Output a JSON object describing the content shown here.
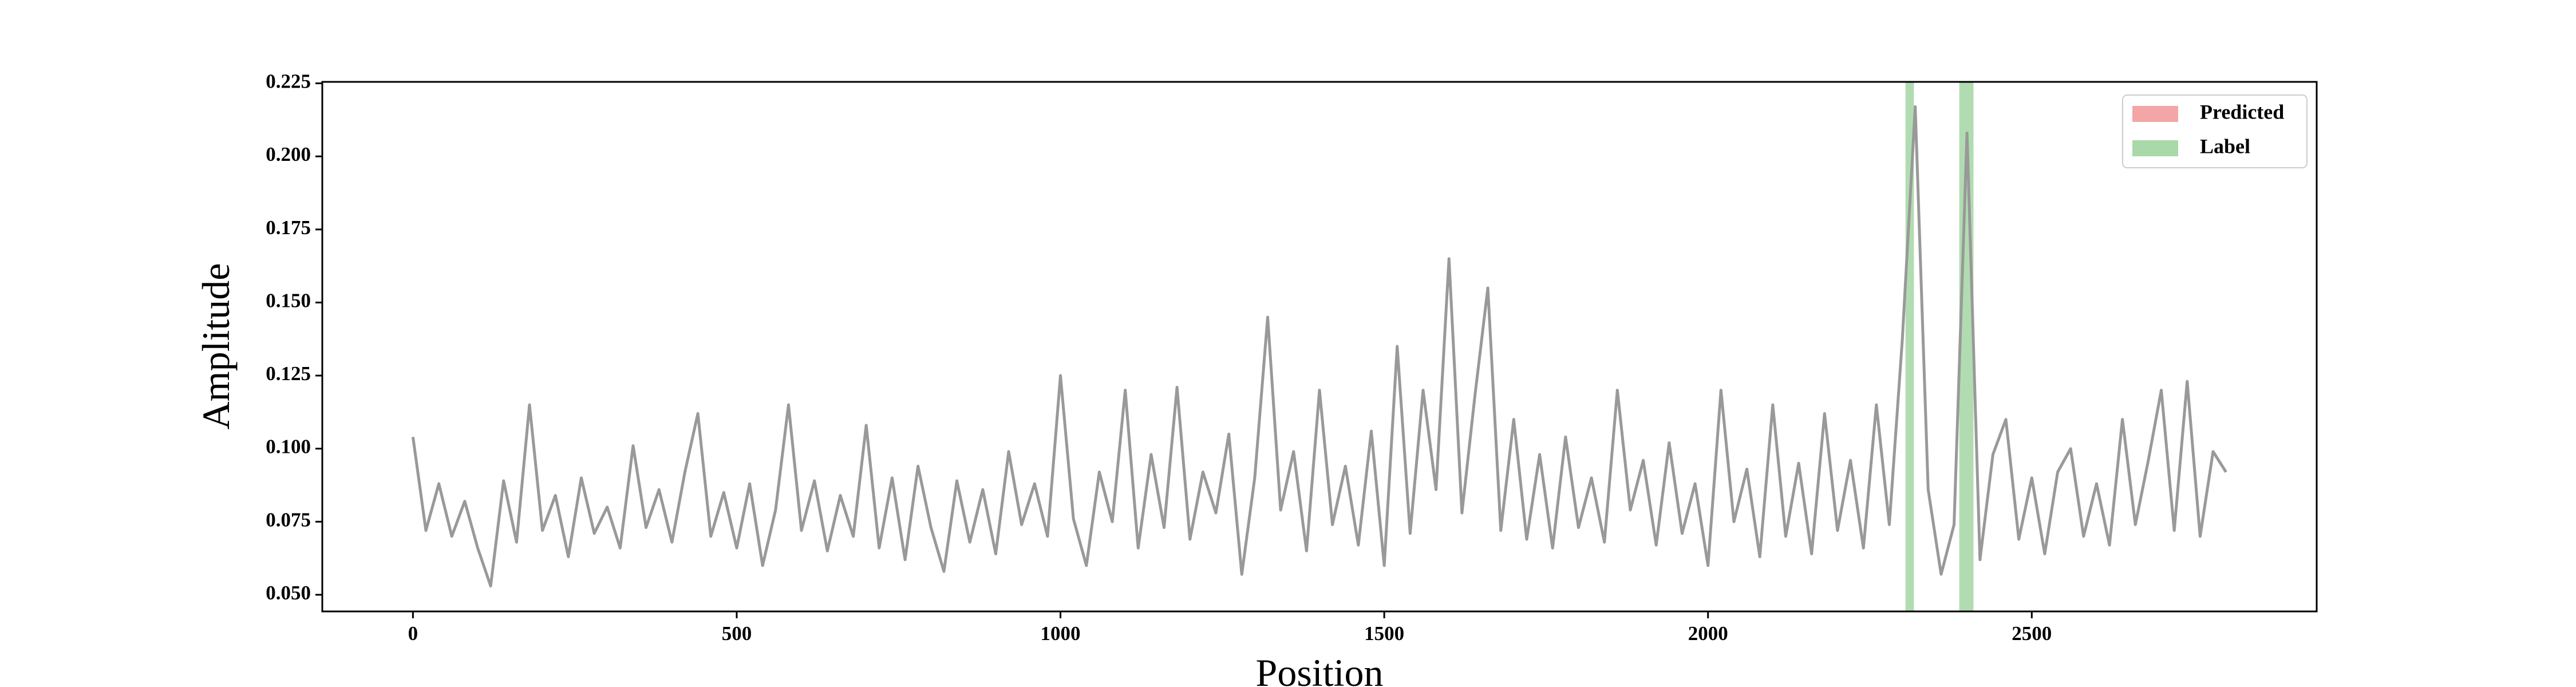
{
  "chart_data": {
    "type": "line",
    "xlabel": "Position",
    "ylabel": "Amplitude",
    "color": "#999999",
    "xlim": [
      -140,
      2940
    ],
    "ylim": [
      0.0443,
      0.2255
    ],
    "xticks": [
      0,
      500,
      1000,
      1500,
      2000,
      2500
    ],
    "yticks": [
      {
        "value": 0.05,
        "label": "0.050"
      },
      {
        "value": 0.075,
        "label": "0.075"
      },
      {
        "value": 0.1,
        "label": "0.100"
      },
      {
        "value": 0.125,
        "label": "0.125"
      },
      {
        "value": 0.15,
        "label": "0.150"
      },
      {
        "value": 0.175,
        "label": "0.175"
      },
      {
        "value": 0.2,
        "label": "0.200"
      },
      {
        "value": 0.225,
        "label": "0.225"
      }
    ],
    "x": [
      0,
      20,
      40,
      60,
      80,
      100,
      120,
      140,
      160,
      180,
      200,
      220,
      240,
      260,
      280,
      300,
      320,
      340,
      360,
      380,
      400,
      420,
      440,
      460,
      480,
      500,
      520,
      540,
      560,
      580,
      600,
      620,
      640,
      660,
      680,
      700,
      720,
      740,
      760,
      780,
      800,
      820,
      840,
      860,
      880,
      900,
      920,
      940,
      960,
      980,
      1000,
      1020,
      1040,
      1060,
      1080,
      1100,
      1120,
      1140,
      1160,
      1180,
      1200,
      1220,
      1240,
      1260,
      1280,
      1300,
      1320,
      1340,
      1360,
      1380,
      1400,
      1420,
      1440,
      1460,
      1480,
      1500,
      1520,
      1540,
      1560,
      1580,
      1600,
      1620,
      1640,
      1660,
      1680,
      1700,
      1720,
      1740,
      1760,
      1780,
      1800,
      1820,
      1840,
      1860,
      1880,
      1900,
      1920,
      1940,
      1960,
      1980,
      2000,
      2020,
      2040,
      2060,
      2080,
      2100,
      2120,
      2140,
      2160,
      2180,
      2200,
      2220,
      2240,
      2260,
      2280,
      2300,
      2320,
      2340,
      2360,
      2380,
      2400,
      2420,
      2440,
      2460,
      2480,
      2500,
      2520,
      2540,
      2560,
      2580,
      2600,
      2620,
      2640,
      2660,
      2680,
      2700,
      2720,
      2740,
      2760,
      2780,
      2800
    ],
    "values": [
      0.104,
      0.072,
      0.088,
      0.07,
      0.082,
      0.066,
      0.053,
      0.089,
      0.068,
      0.115,
      0.072,
      0.084,
      0.063,
      0.09,
      0.071,
      0.08,
      0.066,
      0.101,
      0.073,
      0.086,
      0.068,
      0.092,
      0.112,
      0.07,
      0.085,
      0.066,
      0.088,
      0.06,
      0.079,
      0.115,
      0.072,
      0.089,
      0.065,
      0.084,
      0.07,
      0.108,
      0.066,
      0.09,
      0.062,
      0.094,
      0.073,
      0.058,
      0.089,
      0.068,
      0.086,
      0.064,
      0.099,
      0.074,
      0.088,
      0.07,
      0.125,
      0.076,
      0.06,
      0.092,
      0.075,
      0.12,
      0.066,
      0.098,
      0.073,
      0.121,
      0.069,
      0.092,
      0.078,
      0.105,
      0.057,
      0.09,
      0.145,
      0.079,
      0.099,
      0.065,
      0.12,
      0.074,
      0.094,
      0.067,
      0.106,
      0.06,
      0.135,
      0.071,
      0.12,
      0.086,
      0.165,
      0.078,
      0.118,
      0.155,
      0.072,
      0.11,
      0.069,
      0.098,
      0.066,
      0.104,
      0.073,
      0.09,
      0.068,
      0.12,
      0.079,
      0.096,
      0.067,
      0.102,
      0.071,
      0.088,
      0.06,
      0.12,
      0.075,
      0.093,
      0.063,
      0.115,
      0.07,
      0.095,
      0.064,
      0.112,
      0.072,
      0.096,
      0.066,
      0.115,
      0.074,
      0.137,
      0.217,
      0.086,
      0.057,
      0.074,
      0.208,
      0.062,
      0.098,
      0.11,
      0.069,
      0.09,
      0.064,
      0.092,
      0.1,
      0.07,
      0.088,
      0.067,
      0.11,
      0.074,
      0.096,
      0.12,
      0.072,
      0.123,
      0.07,
      0.099,
      0.092
    ],
    "spans": [
      {
        "start": 2305,
        "end": 2318
      },
      {
        "start": 2388,
        "end": 2410
      }
    ],
    "span_color": "#a9d8a9",
    "legend_position": "upper right",
    "legend": [
      {
        "label": "Predicted",
        "color": "#f4a6a6"
      },
      {
        "label": "Label",
        "color": "#a9d8a9"
      }
    ]
  }
}
